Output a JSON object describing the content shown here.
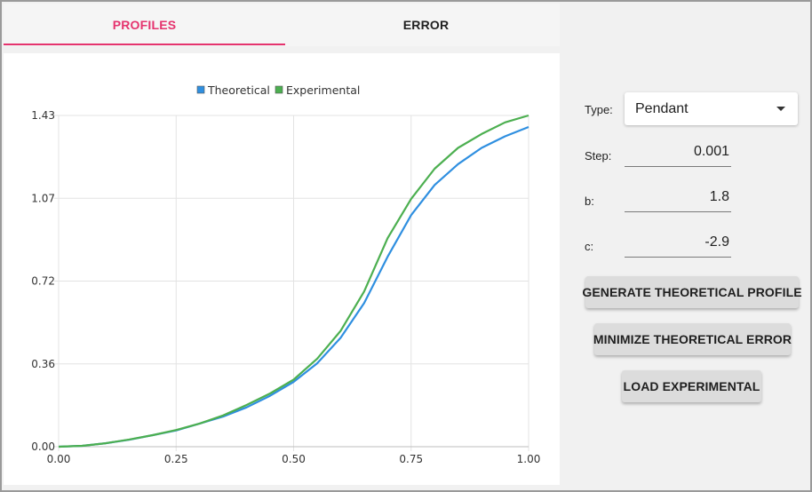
{
  "tabs": [
    {
      "label": "PROFILES",
      "active": true
    },
    {
      "label": "ERROR",
      "active": false
    }
  ],
  "controls": {
    "type_label": "Type:",
    "type_value": "Pendant",
    "step_label": "Step:",
    "step_value": "0.001",
    "b_label": "b:",
    "b_value": "1.8",
    "c_label": "c:",
    "c_value": "-2.9"
  },
  "buttons": {
    "generate": "GENERATE THEORETICAL PROFILE",
    "minimize": "MINIMIZE THEORETICAL ERROR",
    "load": "LOAD EXPERIMENTAL"
  },
  "colors": {
    "accent": "#e5336e",
    "theoretical": "#2f8fe0",
    "experimental": "#4caf50"
  },
  "chart_data": {
    "type": "line",
    "title": "",
    "xlabel": "",
    "ylabel": "",
    "xlim": [
      0,
      1
    ],
    "ylim": [
      0,
      1.43
    ],
    "x_ticks": [
      "0.00",
      "0.25",
      "0.50",
      "0.75",
      "1.00"
    ],
    "y_ticks": [
      "0.00",
      "0.36",
      "0.72",
      "1.07",
      "1.43"
    ],
    "grid": true,
    "legend_position": "top-center",
    "series": [
      {
        "name": "Theoretical",
        "color": "#2f8fe0",
        "x": [
          0,
          0.05,
          0.1,
          0.15,
          0.2,
          0.25,
          0.3,
          0.35,
          0.4,
          0.45,
          0.5,
          0.55,
          0.6,
          0.65,
          0.7,
          0.75,
          0.8,
          0.85,
          0.9,
          0.95,
          1.0
        ],
        "y": [
          0,
          0.004,
          0.015,
          0.03,
          0.05,
          0.07,
          0.1,
          0.13,
          0.17,
          0.22,
          0.28,
          0.36,
          0.47,
          0.62,
          0.82,
          1.0,
          1.13,
          1.22,
          1.29,
          1.34,
          1.38
        ]
      },
      {
        "name": "Experimental",
        "color": "#4caf50",
        "x": [
          0,
          0.05,
          0.1,
          0.15,
          0.2,
          0.25,
          0.3,
          0.35,
          0.4,
          0.45,
          0.5,
          0.55,
          0.6,
          0.65,
          0.7,
          0.75,
          0.8,
          0.85,
          0.9,
          0.95,
          1.0
        ],
        "y": [
          0,
          0.004,
          0.015,
          0.031,
          0.05,
          0.072,
          0.1,
          0.135,
          0.18,
          0.23,
          0.29,
          0.38,
          0.5,
          0.67,
          0.9,
          1.07,
          1.2,
          1.29,
          1.35,
          1.4,
          1.43
        ]
      }
    ]
  }
}
